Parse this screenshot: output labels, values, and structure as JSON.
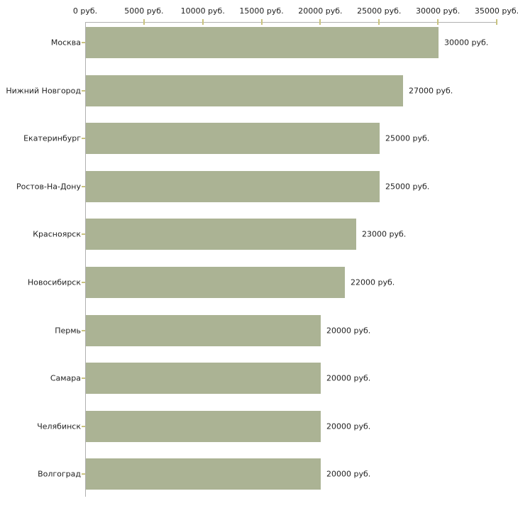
{
  "chart_data": {
    "type": "bar",
    "orientation": "horizontal",
    "title": "",
    "xlabel": "",
    "ylabel": "",
    "categories": [
      "Москва",
      "Нижний Новгород",
      "Екатеринбург",
      "Ростов-На-Дону",
      "Красноярск",
      "Новосибирск",
      "Пермь",
      "Самара",
      "Челябинск",
      "Волгоград"
    ],
    "values": [
      30000,
      27000,
      25000,
      25000,
      23000,
      22000,
      20000,
      20000,
      20000,
      20000
    ],
    "value_labels": [
      "30000 руб.",
      "27000 руб.",
      "25000 руб.",
      "25000 руб.",
      "23000 руб.",
      "22000 руб.",
      "20000 руб.",
      "20000 руб.",
      "20000 руб.",
      "20000 руб."
    ],
    "x_axis": {
      "position": "top",
      "min": 0,
      "max": 35000,
      "ticks": [
        0,
        5000,
        10000,
        15000,
        20000,
        25000,
        30000,
        35000
      ],
      "tick_labels": [
        "0 руб.",
        "5000 руб.",
        "10000 руб.",
        "15000 руб.",
        "20000 руб.",
        "25000 руб.",
        "30000 руб.",
        "35000 руб."
      ]
    },
    "grid": false,
    "legend": false,
    "colors": {
      "bar": "#abb394",
      "axis": "#b0b0b0",
      "tick": "#c9c37f",
      "text": "#222222",
      "background": "#ffffff"
    }
  }
}
